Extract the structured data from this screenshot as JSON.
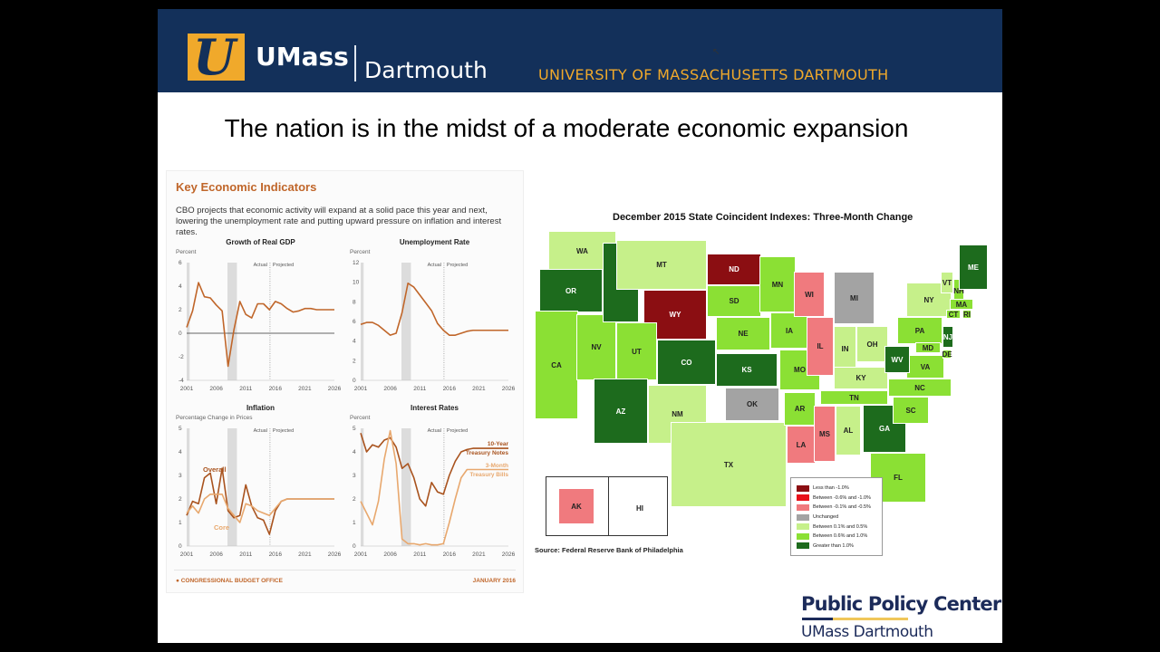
{
  "header": {
    "brand": "UMass",
    "campus": "Dartmouth",
    "university": "UNIVERSITY OF MASSACHUSETTS DARTMOUTH",
    "logo_letter": "U"
  },
  "slide_title": "The nation is in the midst of a moderate economic expansion",
  "cbo": {
    "heading": "Key Economic Indicators",
    "description": "CBO projects that economic activity will expand at a solid pace this year and next, lowering the unemployment rate and putting upward pressure on inflation and interest rates.",
    "footer": "CONGRESSIONAL BUDGET OFFICE",
    "date": "JANUARY 2016",
    "actual_label": "Actual",
    "projected_label": "Projected"
  },
  "chart_data": [
    {
      "type": "line",
      "title": "Growth of Real GDP",
      "ylabel": "Percent",
      "x": [
        2001,
        2002,
        2003,
        2004,
        2005,
        2006,
        2007,
        2008,
        2009,
        2010,
        2011,
        2012,
        2013,
        2014,
        2015,
        2016,
        2017,
        2018,
        2019,
        2020,
        2021,
        2022,
        2023,
        2024,
        2025,
        2026
      ],
      "ylim": [
        -4,
        6
      ],
      "yticks": [
        6,
        4,
        2,
        0,
        -2,
        -4
      ],
      "xticks": [
        2001,
        2006,
        2011,
        2016,
        2021,
        2026
      ],
      "series": [
        {
          "name": "GDP",
          "color": "#c0662a",
          "values": [
            0.5,
            1.9,
            4.3,
            3.1,
            3.0,
            2.4,
            1.9,
            -2.8,
            0.3,
            2.7,
            1.6,
            1.3,
            2.5,
            2.5,
            2.0,
            2.7,
            2.5,
            2.1,
            1.8,
            1.9,
            2.1,
            2.1,
            2.0,
            2.0,
            2.0,
            2.0
          ]
        }
      ]
    },
    {
      "type": "line",
      "title": "Unemployment Rate",
      "ylabel": "Percent",
      "x": [
        2001,
        2002,
        2003,
        2004,
        2005,
        2006,
        2007,
        2008,
        2009,
        2010,
        2011,
        2012,
        2013,
        2014,
        2015,
        2016,
        2017,
        2018,
        2019,
        2020,
        2021,
        2022,
        2023,
        2024,
        2025,
        2026
      ],
      "ylim": [
        0,
        12
      ],
      "yticks": [
        12,
        10,
        8,
        6,
        4,
        2,
        0
      ],
      "xticks": [
        2001,
        2006,
        2011,
        2016,
        2021,
        2026
      ],
      "series": [
        {
          "name": "Unemployment",
          "color": "#c0662a",
          "values": [
            5.7,
            5.9,
            5.9,
            5.6,
            5.1,
            4.6,
            4.8,
            6.9,
            9.9,
            9.5,
            8.7,
            7.9,
            7.1,
            5.8,
            5.1,
            4.6,
            4.6,
            4.8,
            5.0,
            5.1,
            5.1,
            5.1,
            5.1,
            5.1,
            5.1,
            5.1
          ]
        }
      ]
    },
    {
      "type": "line",
      "title": "Inflation",
      "ylabel": "Percentage Change in Prices",
      "x": [
        2001,
        2002,
        2003,
        2004,
        2005,
        2006,
        2007,
        2008,
        2009,
        2010,
        2011,
        2012,
        2013,
        2014,
        2015,
        2016,
        2017,
        2018,
        2019,
        2020,
        2021,
        2022,
        2023,
        2024,
        2025,
        2026
      ],
      "ylim": [
        0,
        5
      ],
      "yticks": [
        5,
        4,
        3,
        2,
        1,
        0
      ],
      "xticks": [
        2001,
        2006,
        2011,
        2016,
        2021,
        2026
      ],
      "series": [
        {
          "name": "Overall",
          "color": "#a9531e",
          "values": [
            1.3,
            1.9,
            1.8,
            2.9,
            3.1,
            1.8,
            3.3,
            1.5,
            1.2,
            1.3,
            2.6,
            1.7,
            1.2,
            1.1,
            0.5,
            1.5,
            1.9,
            2.0,
            2.0,
            2.0,
            2.0,
            2.0,
            2.0,
            2.0,
            2.0,
            2.0
          ]
        },
        {
          "name": "Core",
          "color": "#e8a86e",
          "values": [
            1.4,
            1.7,
            1.4,
            2.0,
            2.2,
            2.2,
            2.2,
            1.6,
            1.3,
            1.0,
            1.8,
            1.7,
            1.5,
            1.4,
            1.3,
            1.6,
            1.9,
            2.0,
            2.0,
            2.0,
            2.0,
            2.0,
            2.0,
            2.0,
            2.0,
            2.0
          ]
        }
      ]
    },
    {
      "type": "line",
      "title": "Interest Rates",
      "ylabel": "Percent",
      "x": [
        2001,
        2002,
        2003,
        2004,
        2005,
        2006,
        2007,
        2008,
        2009,
        2010,
        2011,
        2012,
        2013,
        2014,
        2015,
        2016,
        2017,
        2018,
        2019,
        2020,
        2021,
        2022,
        2023,
        2024,
        2025,
        2026
      ],
      "ylim": [
        0,
        5
      ],
      "yticks": [
        5,
        4,
        3,
        2,
        1,
        0
      ],
      "xticks": [
        2001,
        2006,
        2011,
        2016,
        2021,
        2026
      ],
      "series": [
        {
          "name": "10-Year Treasury Notes",
          "color": "#a9531e",
          "values": [
            4.8,
            4.0,
            4.3,
            4.2,
            4.5,
            4.6,
            4.2,
            3.3,
            3.5,
            2.9,
            2.0,
            1.7,
            2.7,
            2.3,
            2.2,
            3.0,
            3.6,
            4.0,
            4.1,
            4.15,
            4.15,
            4.15,
            4.15,
            4.15,
            4.15,
            4.15
          ]
        },
        {
          "name": "3-Month Treasury Bills",
          "color": "#e8a86e",
          "values": [
            1.9,
            1.4,
            0.9,
            1.9,
            3.7,
            4.9,
            3.5,
            0.3,
            0.1,
            0.1,
            0.05,
            0.1,
            0.05,
            0.05,
            0.1,
            1.0,
            2.0,
            2.9,
            3.25,
            3.25,
            3.25,
            3.25,
            3.25,
            3.25,
            3.25,
            3.25
          ]
        }
      ]
    }
  ],
  "map": {
    "title": "December 2015 State Coincident Indexes: Three-Month Change",
    "source": "Source: Federal Reserve Bank of Philadelphia",
    "legend": [
      {
        "label": "Less than -1.0%",
        "color": "#8b0e12"
      },
      {
        "label": "Between -0.6% and -1.0%",
        "color": "#e8111a"
      },
      {
        "label": "Between -0.1% and -0.5%",
        "color": "#f07a7e"
      },
      {
        "label": "Unchanged",
        "color": "#a3a3a3"
      },
      {
        "label": "Between 0.1% and 0.5%",
        "color": "#c6f08a"
      },
      {
        "label": "Between 0.6% and 1.0%",
        "color": "#8be034"
      },
      {
        "label": "Greater than 1.0%",
        "color": "#1d6b1d"
      }
    ],
    "states": [
      {
        "abbr": "WA",
        "cat": 4
      },
      {
        "abbr": "OR",
        "cat": 6
      },
      {
        "abbr": "CA",
        "cat": 5
      },
      {
        "abbr": "NV",
        "cat": 5
      },
      {
        "abbr": "ID",
        "cat": 6
      },
      {
        "abbr": "MT",
        "cat": 4
      },
      {
        "abbr": "WY",
        "cat": 0
      },
      {
        "abbr": "UT",
        "cat": 5
      },
      {
        "abbr": "AZ",
        "cat": 6
      },
      {
        "abbr": "CO",
        "cat": 6
      },
      {
        "abbr": "NM",
        "cat": 4
      },
      {
        "abbr": "ND",
        "cat": 0
      },
      {
        "abbr": "SD",
        "cat": 5
      },
      {
        "abbr": "NE",
        "cat": 5
      },
      {
        "abbr": "KS",
        "cat": 6
      },
      {
        "abbr": "OK",
        "cat": 3
      },
      {
        "abbr": "TX",
        "cat": 4
      },
      {
        "abbr": "MN",
        "cat": 5
      },
      {
        "abbr": "IA",
        "cat": 5
      },
      {
        "abbr": "MO",
        "cat": 5
      },
      {
        "abbr": "AR",
        "cat": 5
      },
      {
        "abbr": "LA",
        "cat": 2
      },
      {
        "abbr": "WI",
        "cat": 2
      },
      {
        "abbr": "IL",
        "cat": 2
      },
      {
        "abbr": "MI",
        "cat": 3
      },
      {
        "abbr": "IN",
        "cat": 4
      },
      {
        "abbr": "OH",
        "cat": 4
      },
      {
        "abbr": "KY",
        "cat": 4
      },
      {
        "abbr": "TN",
        "cat": 5
      },
      {
        "abbr": "MS",
        "cat": 2
      },
      {
        "abbr": "AL",
        "cat": 4
      },
      {
        "abbr": "GA",
        "cat": 6
      },
      {
        "abbr": "FL",
        "cat": 5
      },
      {
        "abbr": "SC",
        "cat": 5
      },
      {
        "abbr": "NC",
        "cat": 5
      },
      {
        "abbr": "VA",
        "cat": 5
      },
      {
        "abbr": "WV",
        "cat": 6
      },
      {
        "abbr": "PA",
        "cat": 5
      },
      {
        "abbr": "NY",
        "cat": 4
      },
      {
        "abbr": "VT",
        "cat": 4
      },
      {
        "abbr": "NH",
        "cat": 5
      },
      {
        "abbr": "ME",
        "cat": 6
      },
      {
        "abbr": "MA",
        "cat": 5
      },
      {
        "abbr": "CT",
        "cat": 5
      },
      {
        "abbr": "RI",
        "cat": 5
      },
      {
        "abbr": "NJ",
        "cat": 6
      },
      {
        "abbr": "DE",
        "cat": 5
      },
      {
        "abbr": "MD",
        "cat": 5
      },
      {
        "abbr": "AK",
        "cat": 2
      },
      {
        "abbr": "HI",
        "cat": 4
      }
    ]
  },
  "footer_logo": {
    "name": "Public Policy Center",
    "sub": "UMass Dartmouth"
  }
}
